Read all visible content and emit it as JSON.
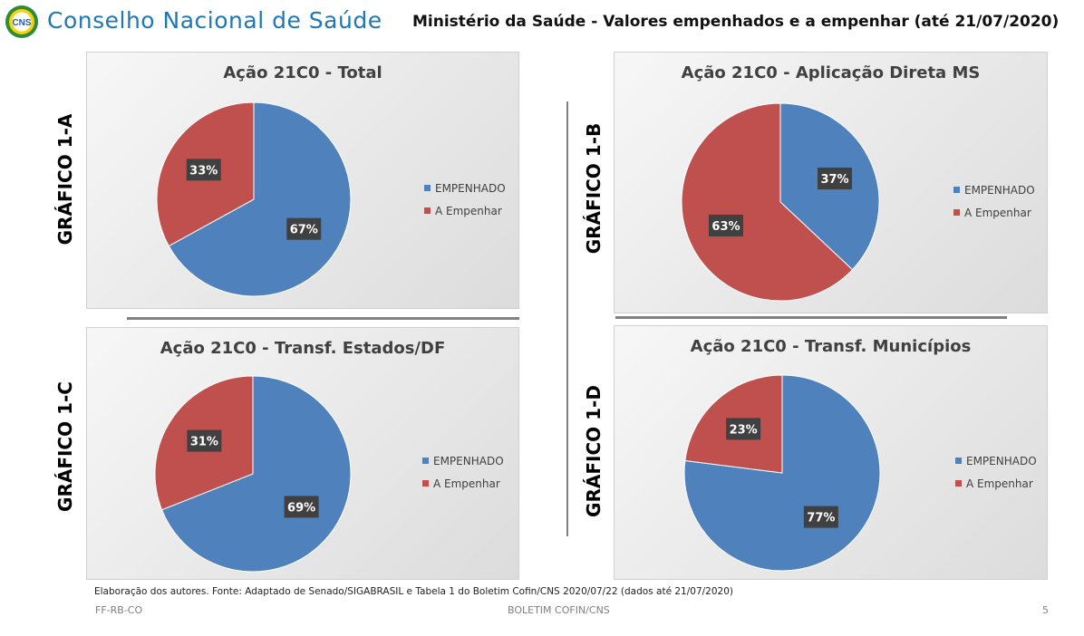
{
  "header": {
    "logo_text": "CNS",
    "org_title": "Conselho Nacional de Saúde",
    "subtitle": "Ministério da Saúde - Valores empenhados e a empenhar (até 21/07/2020)"
  },
  "colors": {
    "empenhado": "#4f81bd",
    "a_empenhar": "#c0504d",
    "label_bg": "#404040",
    "title_blue": "#1f78b4"
  },
  "chart_labels": [
    "GRÁFICO 1-A",
    "GRÁFICO 1-B",
    "GRÁFICO 1-C",
    "GRÁFICO 1-D"
  ],
  "chart_data": [
    {
      "type": "pie",
      "title": "Ação 21C0 - Total",
      "categories": [
        "EMPENHADO",
        "A Empenhar"
      ],
      "values": [
        67,
        33
      ],
      "data_labels": [
        "67%",
        "33%"
      ],
      "legend_position": "right"
    },
    {
      "type": "pie",
      "title": "Ação 21C0 - Aplicação Direta MS",
      "categories": [
        "EMPENHADO",
        "A Empenhar"
      ],
      "values": [
        37,
        63
      ],
      "data_labels": [
        "37%",
        "63%"
      ],
      "legend_position": "right"
    },
    {
      "type": "pie",
      "title": "Ação 21C0 - Transf. Estados/DF",
      "categories": [
        "EMPENHADO",
        "A Empenhar"
      ],
      "values": [
        69,
        31
      ],
      "data_labels": [
        "69%",
        "31%"
      ],
      "legend_position": "right"
    },
    {
      "type": "pie",
      "title": "Ação 21C0 - Transf. Municípios",
      "categories": [
        "EMPENHADO",
        "A Empenhar"
      ],
      "values": [
        77,
        23
      ],
      "data_labels": [
        "77%",
        "23%"
      ],
      "legend_position": "right"
    }
  ],
  "source_note": "Elaboração dos autores. Fonte: Adaptado de Senado/SIGABRASIL e Tabela 1 do Boletim Cofin/CNS 2020/07/22  (dados até 21/07/2020)",
  "footer": {
    "left": "FF-RB-CO",
    "center": "BOLETIM COFIN/CNS",
    "page_number": "5"
  }
}
